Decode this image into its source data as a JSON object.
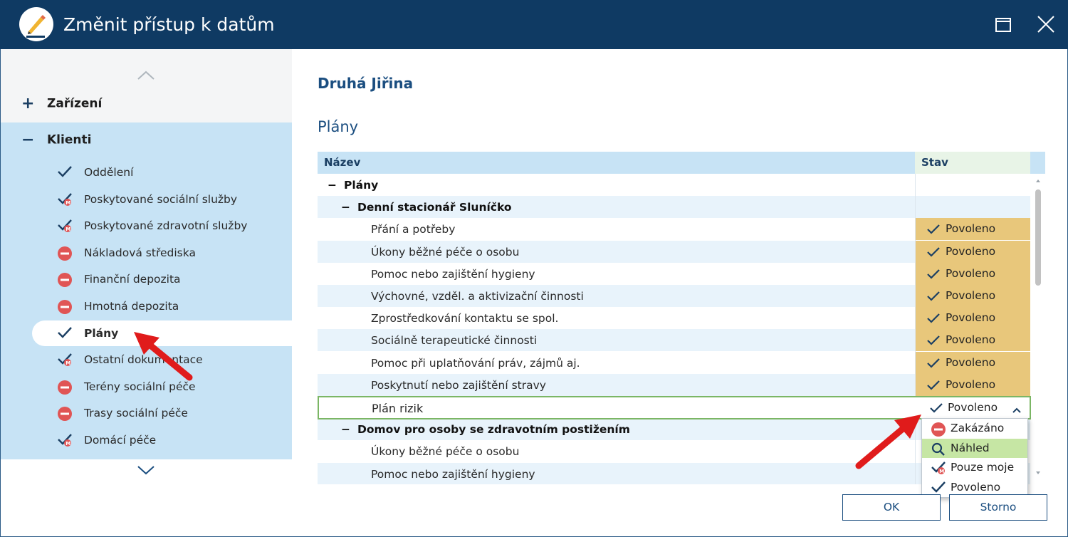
{
  "window": {
    "title": "Změnit přístup k datům"
  },
  "icons": {
    "app": "pencil-logo-icon",
    "maximize": "maximize-icon",
    "close": "close-icon",
    "check": "check-icon",
    "check_mine": "check-mine-icon",
    "denied": "forbidden-icon",
    "preview": "magnifier-icon"
  },
  "colors": {
    "titlebar": "#0f3a63",
    "sidebar_selected_group": "#c7e3f5",
    "granted": "#e8c77b",
    "denied": "#e05555",
    "active_option": "#c6e6a4",
    "arrow": "#e01b1b"
  },
  "sidebar": {
    "groups": [
      {
        "sign": "+",
        "label": "Zařízení"
      },
      {
        "sign": "−",
        "label": "Klienti"
      }
    ],
    "items": [
      {
        "label": "Oddělení",
        "icon": "check"
      },
      {
        "label": "Poskytované sociální služby",
        "icon": "check_mine"
      },
      {
        "label": "Poskytované zdravotní služby",
        "icon": "check_mine"
      },
      {
        "label": "Nákladová střediska",
        "icon": "denied"
      },
      {
        "label": "Finanční depozita",
        "icon": "denied"
      },
      {
        "label": "Hmotná depozita",
        "icon": "denied"
      },
      {
        "label": "Plány",
        "icon": "check",
        "selected": true
      },
      {
        "label": "Ostatní dokumentace",
        "icon": "check_mine"
      },
      {
        "label": "Terény sociální péče",
        "icon": "denied"
      },
      {
        "label": "Trasy sociální péče",
        "icon": "denied"
      },
      {
        "label": "Domácí péče",
        "icon": "check_mine"
      }
    ]
  },
  "main": {
    "person": "Druhá Jiřina",
    "section": "Plány",
    "columns": {
      "name": "Název",
      "status": "Stav"
    },
    "rows": [
      {
        "name": "Plány",
        "level": 0,
        "sign": "−",
        "status": ""
      },
      {
        "name": "Denní stacionář Sluníčko",
        "level": 1,
        "sign": "−",
        "status": ""
      },
      {
        "name": "Přání a potřeby",
        "level": 2,
        "status": "Povoleno"
      },
      {
        "name": "Úkony běžné péče o osobu",
        "level": 2,
        "status": "Povoleno"
      },
      {
        "name": "Pomoc nebo zajištění hygieny",
        "level": 2,
        "status": "Povoleno"
      },
      {
        "name": "Výchovné, vzděl. a aktivizační činnosti",
        "level": 2,
        "status": "Povoleno"
      },
      {
        "name": "Zprostředkování kontaktu se spol.",
        "level": 2,
        "status": "Povoleno"
      },
      {
        "name": "Sociálně terapeutické činnosti",
        "level": 2,
        "status": "Povoleno"
      },
      {
        "name": "Pomoc při uplatňování práv, zájmů aj.",
        "level": 2,
        "status": "Povoleno"
      },
      {
        "name": "Poskytnutí nebo zajištění stravy",
        "level": 2,
        "status": "Povoleno"
      },
      {
        "name": "Plán rizik",
        "level": 2,
        "status": "Povoleno",
        "editing": true
      },
      {
        "name": "Domov pro osoby se zdravotním postižením",
        "level": 1,
        "sign": "−",
        "status": ""
      },
      {
        "name": "Úkony běžné péče o osobu",
        "level": 2,
        "status": ""
      },
      {
        "name": "Pomoc nebo zajištění hygieny",
        "level": 2,
        "status": ""
      }
    ],
    "dropdown": {
      "options": [
        {
          "label": "Zakázáno",
          "icon": "denied"
        },
        {
          "label": "Náhled",
          "icon": "preview",
          "highlighted": true
        },
        {
          "label": "Pouze moje",
          "icon": "check_mine"
        },
        {
          "label": "Povoleno",
          "icon": "check"
        }
      ]
    },
    "buttons": {
      "ok": "OK",
      "cancel": "Storno"
    }
  }
}
